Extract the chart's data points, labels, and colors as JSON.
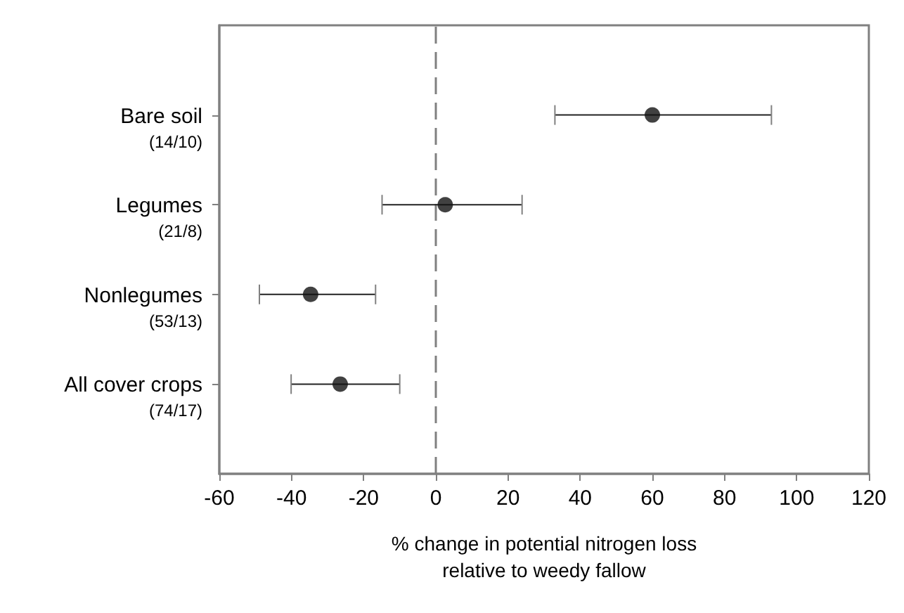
{
  "chart_data": {
    "type": "scatter",
    "categories": [
      "Bare soil\n(14/10)",
      "Legumes\n(21/8)",
      "Nonlegumes\n(53/13)",
      "All cover crops\n(74/17)"
    ],
    "orientation": "horizontal",
    "series": [
      {
        "color": "#111111",
        "values": [
          60,
          2.6,
          -34.7,
          -26.5
        ],
        "errors": [
          [
            33,
            93
          ],
          [
            -14.9,
            23.9
          ],
          [
            -48.9,
            -16.7
          ],
          [
            -40.1,
            -10
          ]
        ]
      }
    ],
    "xlim": [
      -60,
      120
    ],
    "xticks": [
      -60,
      -40,
      -20,
      0,
      20,
      40,
      60,
      80,
      100,
      120
    ],
    "xlabel": "% change in potential nitrogen loss\nrelative to weedy fallow",
    "ref_lines": [
      {
        "axis": "x",
        "value": 0,
        "color": "#808080",
        "line_style": "dashed"
      }
    ],
    "marker": "circle",
    "grid": false,
    "legend": false
  }
}
